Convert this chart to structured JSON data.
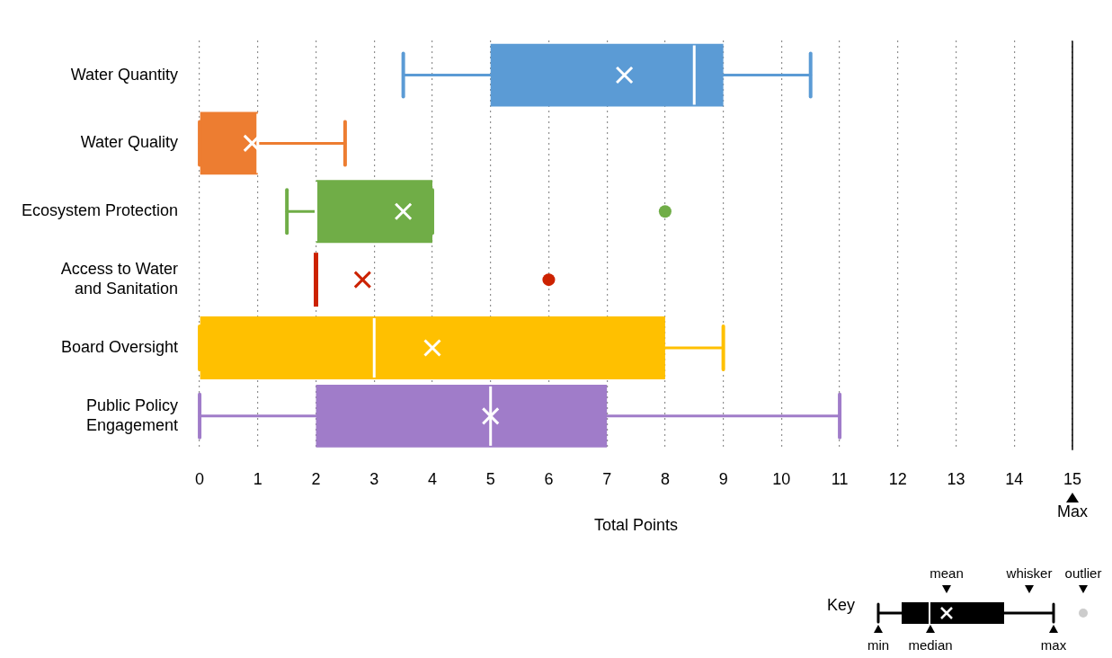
{
  "chart_data": {
    "type": "box",
    "orientation": "horizontal",
    "xlabel": "Total Points",
    "categories": [
      "Water Quantity",
      "Water Quality",
      "Ecosystem Protection",
      "Access to Water and Sanitation",
      "Board Oversight",
      "Public Policy Engagement"
    ],
    "colors": [
      "#5b9bd5",
      "#ed7d31",
      "#70ad47",
      "#cc2200",
      "#ffc000",
      "#a07cc9"
    ],
    "boxes": [
      {
        "low": 3.5,
        "q1": 5,
        "median": 8.5,
        "q3": 9,
        "high": 10.5,
        "mean": 7.3
      },
      {
        "low": 0,
        "q1": 0,
        "median": 1,
        "q3": 1,
        "high": 2.5,
        "mean": 0.9
      },
      {
        "low": 1.5,
        "q1": 2,
        "median": 2,
        "q3": 4,
        "high": 4,
        "mean": 3.5,
        "outliers": [
          8
        ]
      },
      {
        "low": 2,
        "q1": 2,
        "median": 2,
        "q3": 2,
        "high": 2,
        "mean": 2.8,
        "outliers": [
          6
        ]
      },
      {
        "low": 0,
        "q1": 0,
        "median": 3,
        "q3": 8,
        "high": 9,
        "mean": 4
      },
      {
        "low": 0,
        "q1": 2,
        "median": 5,
        "q3": 7,
        "high": 11,
        "mean": 5
      }
    ],
    "xlim": [
      0,
      15
    ],
    "xticks": [
      0,
      1,
      2,
      3,
      4,
      5,
      6,
      7,
      8,
      9,
      10,
      11,
      12,
      13,
      14,
      15
    ],
    "grid": "x",
    "line_style": "dotted",
    "ref_lines": [
      {
        "axis": "x",
        "value": 15,
        "label": "Max"
      }
    ],
    "annotations": [
      "Key",
      "mean",
      "whisker",
      "outlier",
      "min",
      "median",
      "max"
    ]
  }
}
